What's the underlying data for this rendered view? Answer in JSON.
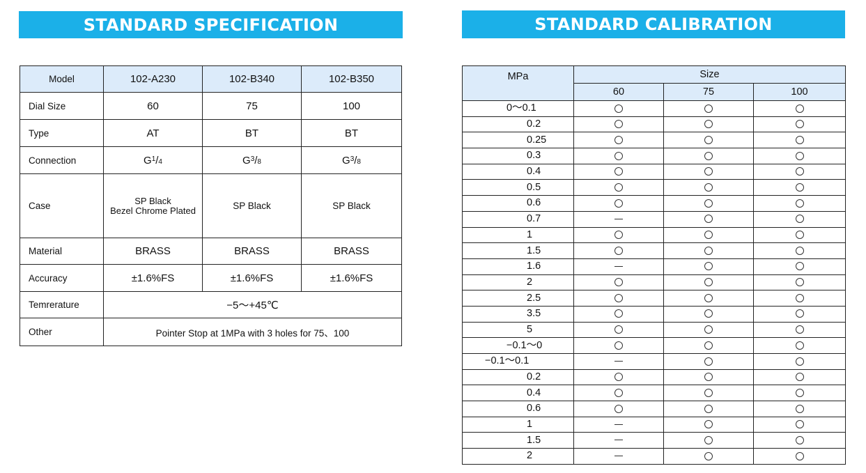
{
  "spec": {
    "title": "STANDARD SPECIFICATION",
    "columns": [
      "Model",
      "102-A230",
      "102-B340",
      "102-B350"
    ],
    "rows": {
      "dial_size": {
        "label": "Dial Size",
        "values": [
          "60",
          "75",
          "100"
        ]
      },
      "type": {
        "label": "Type",
        "values": [
          "AT",
          "BT",
          "BT"
        ]
      },
      "connection": {
        "label": "Connection",
        "values": [
          {
            "base": "G",
            "num": "1",
            "den": "4"
          },
          {
            "base": "G",
            "num": "3",
            "den": "8"
          },
          {
            "base": "G",
            "num": "3",
            "den": "8"
          }
        ]
      },
      "case": {
        "label": "Case",
        "values": [
          {
            "line1": "SP Black",
            "line2": "Bezel Chrome Plated"
          },
          {
            "line1": "SP Black"
          },
          {
            "line1": "SP Black"
          }
        ]
      },
      "material": {
        "label": "Material",
        "values": [
          "BRASS",
          "BRASS",
          "BRASS"
        ]
      },
      "accuracy": {
        "label": "Accuracy",
        "values": [
          "±1.6%FS",
          "±1.6%FS",
          "±1.6%FS"
        ]
      },
      "temperature": {
        "label": "Temrerature",
        "value": "−5～+45℃"
      },
      "other": {
        "label": "Other",
        "value": "Pointer Stop at 1MPa with 3 holes for 75、100"
      }
    }
  },
  "calibration": {
    "title": "STANDARD CALIBRATION",
    "mpa_header": "MPa",
    "size_header": "Size",
    "sizes": [
      "60",
      "75",
      "100"
    ],
    "rows": [
      {
        "range": "0～0.1",
        "avail": [
          "available",
          "available",
          "available"
        ]
      },
      {
        "range": "0.2",
        "avail": [
          "available",
          "available",
          "available"
        ]
      },
      {
        "range": "0.25",
        "avail": [
          "available",
          "available",
          "available"
        ]
      },
      {
        "range": "0.3",
        "avail": [
          "available",
          "available",
          "available"
        ]
      },
      {
        "range": "0.4",
        "avail": [
          "available",
          "available",
          "available"
        ]
      },
      {
        "range": "0.5",
        "avail": [
          "available",
          "available",
          "available"
        ]
      },
      {
        "range": "0.6",
        "avail": [
          "available",
          "available",
          "available"
        ]
      },
      {
        "range": "0.7",
        "avail": [
          "unavailable",
          "available",
          "available"
        ]
      },
      {
        "range": "1",
        "avail": [
          "available",
          "available",
          "available"
        ]
      },
      {
        "range": "1.5",
        "avail": [
          "available",
          "available",
          "available"
        ]
      },
      {
        "range": "1.6",
        "avail": [
          "unavailable",
          "available",
          "available"
        ]
      },
      {
        "range": "2",
        "avail": [
          "available",
          "available",
          "available"
        ]
      },
      {
        "range": "2.5",
        "avail": [
          "available",
          "available",
          "available"
        ]
      },
      {
        "range": "3.5",
        "avail": [
          "available",
          "available",
          "available"
        ]
      },
      {
        "range": "5",
        "avail": [
          "available",
          "available",
          "available"
        ]
      },
      {
        "range": "−0.1～0",
        "avail": [
          "available",
          "available",
          "available"
        ]
      },
      {
        "range": "−0.1～0.1",
        "avail": [
          "unavailable",
          "available",
          "available"
        ]
      },
      {
        "range": "0.2",
        "avail": [
          "available",
          "available",
          "available"
        ]
      },
      {
        "range": "0.4",
        "avail": [
          "available",
          "available",
          "available"
        ]
      },
      {
        "range": "0.6",
        "avail": [
          "available",
          "available",
          "available"
        ]
      },
      {
        "range": "1",
        "avail": [
          "unavailable",
          "available",
          "available"
        ]
      },
      {
        "range": "1.5",
        "avail": [
          "unavailable",
          "available",
          "available"
        ]
      },
      {
        "range": "2",
        "avail": [
          "unavailable",
          "available",
          "available"
        ]
      }
    ]
  }
}
